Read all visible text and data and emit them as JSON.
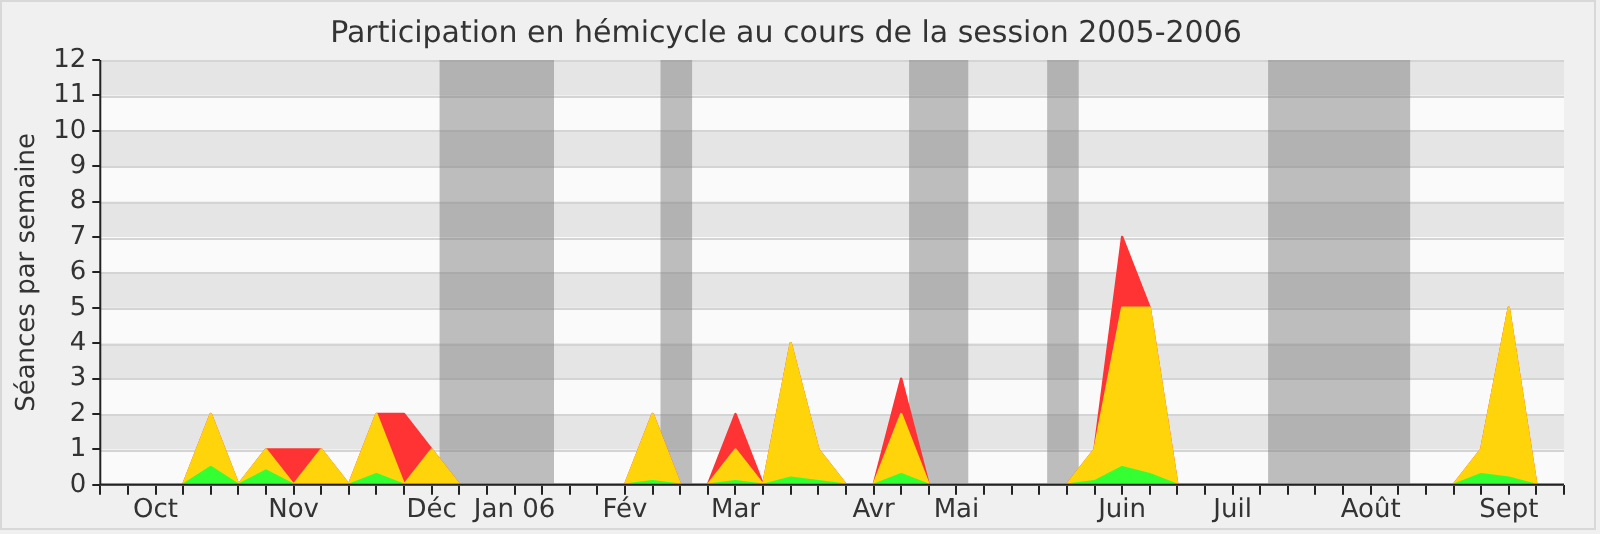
{
  "chart_data": {
    "type": "area",
    "title": "Participation en hémicycle au cours de la session 2005-2006",
    "ylabel": "Séances par semaine",
    "x": [
      "2005-09-26",
      "2005-10-03",
      "2005-10-10",
      "2005-10-17",
      "2005-10-24",
      "2005-10-31",
      "2005-11-07",
      "2005-11-14",
      "2005-11-21",
      "2005-11-28",
      "2005-12-05",
      "2005-12-12",
      "2005-12-19",
      "2005-12-26",
      "2006-01-02",
      "2006-01-09",
      "2006-01-16",
      "2006-01-23",
      "2006-01-30",
      "2006-02-06",
      "2006-02-13",
      "2006-02-20",
      "2006-02-27",
      "2006-03-06",
      "2006-03-13",
      "2006-03-20",
      "2006-03-27",
      "2006-04-03",
      "2006-04-10",
      "2006-04-17",
      "2006-04-24",
      "2006-05-01",
      "2006-05-08",
      "2006-05-15",
      "2006-05-22",
      "2006-05-29",
      "2006-06-05",
      "2006-06-12",
      "2006-06-19",
      "2006-06-26",
      "2006-07-03",
      "2006-07-10",
      "2006-07-17",
      "2006-07-24",
      "2006-07-31",
      "2006-08-07",
      "2006-08-14",
      "2006-08-21",
      "2006-08-28",
      "2006-09-04",
      "2006-09-11",
      "2006-09-18",
      "2006-09-25",
      "2006-10-02"
    ],
    "series": [
      {
        "color": "#ff3333",
        "values": [
          0,
          0,
          0,
          0,
          2,
          0,
          1,
          1,
          1,
          0,
          2,
          2,
          1,
          0,
          0,
          0,
          0,
          0,
          0,
          0,
          2,
          0,
          0,
          2,
          0,
          4,
          1,
          0,
          0,
          3,
          0,
          0,
          0,
          0,
          0,
          0,
          1,
          7,
          5,
          0,
          0,
          0,
          0,
          0,
          0,
          0,
          0,
          0,
          0,
          0,
          1,
          5,
          0,
          0
        ]
      },
      {
        "color": "#ffd40a",
        "values": [
          0,
          0,
          0,
          0,
          2,
          0,
          1,
          0,
          1,
          0,
          2,
          0,
          1,
          0,
          0,
          0,
          0,
          0,
          0,
          0,
          2,
          0,
          0,
          1,
          0,
          4,
          1,
          0,
          0,
          2,
          0,
          0,
          0,
          0,
          0,
          0,
          1,
          5,
          5,
          0,
          0,
          0,
          0,
          0,
          0,
          0,
          0,
          0,
          0,
          0,
          1,
          5,
          0,
          0
        ]
      },
      {
        "color": "#33ff33",
        "values": [
          0,
          0,
          0,
          0,
          0.5,
          0,
          0.4,
          0,
          0,
          0,
          0.3,
          0,
          0,
          0,
          0,
          0,
          0,
          0,
          0,
          0,
          0.1,
          0,
          0,
          0.1,
          0,
          0.2,
          0.1,
          0,
          0,
          0.3,
          0,
          0,
          0,
          0,
          0,
          0,
          0.1,
          0.5,
          0.3,
          0,
          0,
          0,
          0,
          0,
          0,
          0,
          0,
          0,
          0,
          0,
          0.3,
          0.2,
          0,
          0
        ]
      }
    ],
    "xlim": [
      "2005-09-26",
      "2006-10-02"
    ],
    "xticks": [
      {
        "value": "2005-09-26",
        "label": null
      },
      {
        "value": "2005-10-03",
        "label": null
      },
      {
        "value": "2005-10-10",
        "label": "Oct"
      },
      {
        "value": "2005-10-17",
        "label": null
      },
      {
        "value": "2005-10-24",
        "label": null
      },
      {
        "value": "2005-10-31",
        "label": null
      },
      {
        "value": "2005-11-07",
        "label": null
      },
      {
        "value": "2005-11-14",
        "label": "Nov"
      },
      {
        "value": "2005-11-21",
        "label": null
      },
      {
        "value": "2005-11-28",
        "label": null
      },
      {
        "value": "2005-12-05",
        "label": null
      },
      {
        "value": "2005-12-12",
        "label": null
      },
      {
        "value": "2005-12-19",
        "label": "Déc"
      },
      {
        "value": "2005-12-26",
        "label": null
      },
      {
        "value": "2006-01-02",
        "label": null
      },
      {
        "value": "2006-01-09",
        "label": "Jan 06"
      },
      {
        "value": "2006-01-16",
        "label": null
      },
      {
        "value": "2006-01-23",
        "label": null
      },
      {
        "value": "2006-01-30",
        "label": null
      },
      {
        "value": "2006-02-06",
        "label": "Fév"
      },
      {
        "value": "2006-02-13",
        "label": null
      },
      {
        "value": "2006-02-20",
        "label": null
      },
      {
        "value": "2006-02-27",
        "label": null
      },
      {
        "value": "2006-03-06",
        "label": "Mar"
      },
      {
        "value": "2006-03-13",
        "label": null
      },
      {
        "value": "2006-03-20",
        "label": null
      },
      {
        "value": "2006-03-27",
        "label": null
      },
      {
        "value": "2006-04-03",
        "label": null
      },
      {
        "value": "2006-04-10",
        "label": "Avr"
      },
      {
        "value": "2006-04-17",
        "label": null
      },
      {
        "value": "2006-04-24",
        "label": null
      },
      {
        "value": "2006-05-01",
        "label": "Mai"
      },
      {
        "value": "2006-05-08",
        "label": null
      },
      {
        "value": "2006-05-15",
        "label": null
      },
      {
        "value": "2006-05-22",
        "label": null
      },
      {
        "value": "2006-05-29",
        "label": null
      },
      {
        "value": "2006-06-05",
        "label": null
      },
      {
        "value": "2006-06-12",
        "label": "Juin"
      },
      {
        "value": "2006-06-19",
        "label": null
      },
      {
        "value": "2006-06-26",
        "label": null
      },
      {
        "value": "2006-07-03",
        "label": null
      },
      {
        "value": "2006-07-10",
        "label": "Juil"
      },
      {
        "value": "2006-07-17",
        "label": null
      },
      {
        "value": "2006-07-24",
        "label": null
      },
      {
        "value": "2006-07-31",
        "label": null
      },
      {
        "value": "2006-08-07",
        "label": null
      },
      {
        "value": "2006-08-14",
        "label": "Août"
      },
      {
        "value": "2006-08-21",
        "label": null
      },
      {
        "value": "2006-08-28",
        "label": null
      },
      {
        "value": "2006-09-04",
        "label": null
      },
      {
        "value": "2006-09-11",
        "label": null
      },
      {
        "value": "2006-09-18",
        "label": "Sept"
      },
      {
        "value": "2006-09-25",
        "label": null
      },
      {
        "value": "2006-10-02",
        "label": null
      }
    ],
    "ylim": [
      0,
      12
    ],
    "yticks": [
      0,
      1,
      2,
      3,
      4,
      5,
      6,
      7,
      8,
      9,
      10,
      11,
      12
    ],
    "bands": [
      {
        "axis": "x",
        "from": "2005-12-21",
        "to": "2006-01-19",
        "color": "#808080"
      },
      {
        "axis": "x",
        "from": "2006-02-15",
        "to": "2006-02-23",
        "color": "#808080"
      },
      {
        "axis": "x",
        "from": "2006-04-19",
        "to": "2006-05-04",
        "color": "#808080"
      },
      {
        "axis": "x",
        "from": "2006-05-24",
        "to": "2006-06-01",
        "color": "#808080"
      },
      {
        "axis": "x",
        "from": "2006-07-19",
        "to": "2006-08-24",
        "color": "#808080"
      }
    ],
    "grid": "y",
    "legend": false
  }
}
